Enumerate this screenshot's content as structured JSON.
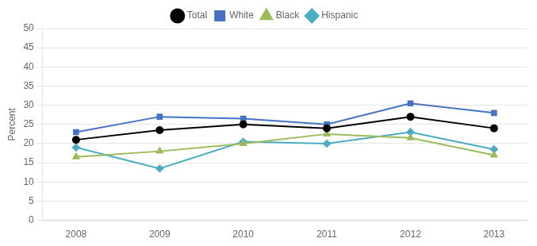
{
  "chart_data": {
    "type": "line",
    "x": [
      2008,
      2009,
      2010,
      2011,
      2012,
      2013
    ],
    "series": [
      {
        "name": "Total",
        "color": "#000000",
        "marker": "circle",
        "values": [
          21,
          23.5,
          25,
          24,
          27,
          24
        ]
      },
      {
        "name": "White",
        "color": "#4472C4",
        "marker": "square",
        "values": [
          23,
          27,
          26.5,
          25,
          30.5,
          28
        ]
      },
      {
        "name": "Black",
        "color": "#9BBB59",
        "marker": "triangle",
        "values": [
          16.5,
          18,
          20,
          22.5,
          21.5,
          17
        ]
      },
      {
        "name": "Hispanic",
        "color": "#4BACC6",
        "marker": "diamond",
        "values": [
          19,
          13.5,
          20.5,
          20,
          23,
          18.5
        ]
      }
    ],
    "y_label": "Percent",
    "xlim": [
      2007.6,
      2013.4
    ],
    "xticks": [
      2008,
      2009,
      2010,
      2011,
      2012,
      2013
    ],
    "ylim": [
      0,
      50
    ],
    "yticks": [
      0,
      5,
      10,
      15,
      20,
      25,
      30,
      35,
      40,
      45,
      50
    ],
    "grid": "y",
    "legend": "top"
  }
}
